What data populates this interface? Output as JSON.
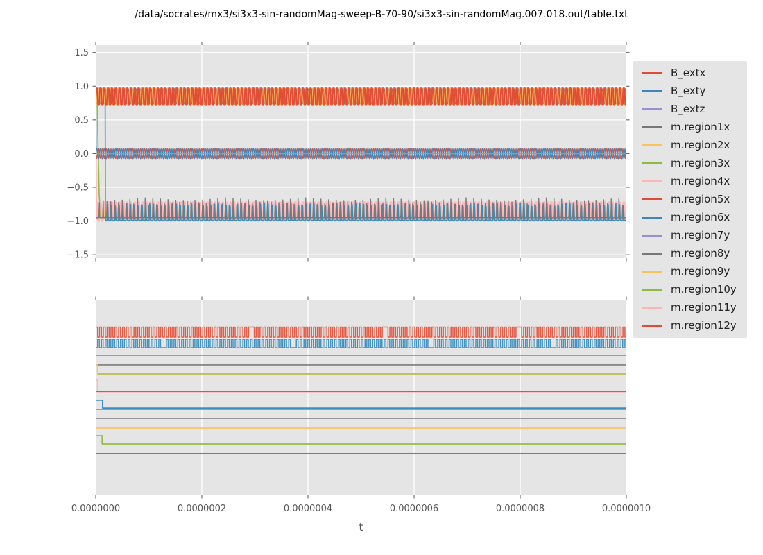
{
  "title": "/data/socrates/mx3/si3x3-sin-randomMag-sweep-B-70-90/si3x3-sin-randomMag.007.018.out/table.txt",
  "xlabel": "t",
  "palette": {
    "red": "#e24a33",
    "blue": "#348abd",
    "purple": "#988ed5",
    "gray": "#777777",
    "orange": "#fbc15e",
    "green": "#8eba42",
    "pink": "#ffb5b8",
    "plot_bg": "#e5e5e5",
    "grid": "#ffffff",
    "tick_text": "#555555",
    "title_text": "#000000"
  },
  "legend": {
    "entries": [
      {
        "label": "B_extx",
        "color": "#e24a33"
      },
      {
        "label": "B_exty",
        "color": "#348abd"
      },
      {
        "label": "B_extz",
        "color": "#988ed5"
      },
      {
        "label": "m.region1x",
        "color": "#777777"
      },
      {
        "label": "m.region2x",
        "color": "#fbc15e"
      },
      {
        "label": "m.region3x",
        "color": "#8eba42"
      },
      {
        "label": "m.region4x",
        "color": "#ffb5b8"
      },
      {
        "label": "m.region5x",
        "color": "#e24a33"
      },
      {
        "label": "m.region6x",
        "color": "#348abd"
      },
      {
        "label": "m.region7y",
        "color": "#988ed5"
      },
      {
        "label": "m.region8y",
        "color": "#777777"
      },
      {
        "label": "m.region9y",
        "color": "#fbc15e"
      },
      {
        "label": "m.region10y",
        "color": "#8eba42"
      },
      {
        "label": "m.region11y",
        "color": "#ffb5b8"
      },
      {
        "label": "m.region12y",
        "color": "#e24a33"
      }
    ]
  },
  "chart_data": [
    {
      "id": "top",
      "type": "line",
      "xlim": [
        0,
        1e-06
      ],
      "ylim": [
        -1.55,
        1.61
      ],
      "xticks": {
        "values": [
          0,
          2e-07,
          4e-07,
          6e-07,
          8e-07,
          1e-06
        ],
        "labels": [
          "0.0000000",
          "0.0000002",
          "0.0000004",
          "0.0000006",
          "0.0000008",
          "0.0000010"
        ],
        "show_labels": false
      },
      "yticks": {
        "values": [
          1.5,
          1.0,
          0.5,
          0.0,
          -0.5,
          -1.0,
          -1.5
        ],
        "labels": [
          "1.5",
          "1.0",
          "0.5",
          "0.0",
          "−0.5",
          "−1.0",
          "−1.5"
        ]
      },
      "grid": {
        "horizontal": true,
        "vertical": true
      },
      "note": "Dense periodic oscillations in three bands: ~[0.72,0.97] mostly red, ~[-0.075,0.075] around zero, ~[-1.0,-0.66] mostly pink; startup transients near t=0 where green/pink/blue traces fall from ~+0.95 to the bottom band.",
      "series": [
        {
          "name": "m.region3x",
          "color": "#8eba42",
          "lw": 1.7,
          "draw": {
            "type": "flat",
            "y": -0.93,
            "t0": 9e-09,
            "pre": [
              [
                0,
                0.95
              ],
              [
                2.5e-09,
                0.88
              ],
              [
                4.5e-09,
                0.1
              ],
              [
                6.5e-09,
                -0.6
              ],
              [
                9e-09,
                -0.93
              ]
            ]
          }
        },
        {
          "name": "m.region9y",
          "color": "#fbc15e",
          "lw": 1.6,
          "draw": {
            "type": "sine",
            "mean": -0.88,
            "amp": 0.1,
            "period": 7.2e-09,
            "phase": 1.2
          }
        },
        {
          "name": "m.region4x",
          "color": "#ffb5b8",
          "lw": 2.2,
          "draw": {
            "type": "clipsine",
            "mean": -0.86,
            "amp": 0.14,
            "clip": 2.0,
            "period": 7.2e-09,
            "phase": 0,
            "t0": 2e-09,
            "pre": [
              [
                0,
                0.1
              ],
              [
                8e-10,
                -0.4
              ],
              [
                1.6e-09,
                -0.97
              ]
            ]
          }
        },
        {
          "name": "m.region6x",
          "color": "#348abd",
          "lw": 1.6,
          "draw": {
            "type": "spikes",
            "base": -0.99,
            "tip": -0.73,
            "width": 0.3,
            "period": 7.2e-09,
            "phase": 0.35,
            "t0": 1.85e-08,
            "pre": [
              [
                0,
                0.97
              ],
              [
                1.78e-08,
                0.95
              ],
              [
                1.82e-08,
                -0.83
              ]
            ]
          }
        },
        {
          "name": "m.region8y",
          "color": "#777777",
          "lw": 1.5,
          "draw": {
            "type": "spikes",
            "base": -0.95,
            "tip": -0.655,
            "width": 0.16,
            "period": 7.2e-09,
            "phase": 0.55
          }
        },
        {
          "name": "m.region1x",
          "color": "#777777",
          "lw": 1.5,
          "draw": {
            "type": "sine",
            "mean": 0.85,
            "amp": 0.11,
            "period": 7.2e-09,
            "phase": 3.5
          }
        },
        {
          "name": "m.region2x",
          "color": "#fbc15e",
          "lw": 1.6,
          "draw": {
            "type": "sine",
            "mean": 0.85,
            "amp": 0.13,
            "period": 7.2e-09,
            "phase": 1.8
          }
        },
        {
          "name": "B_extx",
          "color": "#e24a33",
          "lw": 2.2,
          "draw": {
            "type": "clipsine",
            "mean": 0.845,
            "amp": 0.125,
            "clip": 1.6,
            "period": 7.2e-09,
            "phase": 0
          }
        },
        {
          "name": "m.region5x",
          "color": "#e24a33",
          "lw": 1.6,
          "draw": {
            "type": "sine",
            "mean": 0.0,
            "amp": 0.07,
            "period": 7.2e-09,
            "phase": 3.1
          }
        },
        {
          "name": "B_exty",
          "color": "#348abd",
          "lw": 1.6,
          "draw": {
            "type": "sine",
            "mean": 0.0,
            "amp": 0.075,
            "period": 7.2e-09,
            "phase": 0,
            "t0": 1e-09,
            "pre": [
              [
                0,
                0.93
              ],
              [
                8e-10,
                0.1
              ]
            ]
          }
        },
        {
          "name": "B_extz",
          "color": "#988ed5",
          "lw": 1.5,
          "draw": {
            "type": "flat",
            "y": 0.0
          }
        }
      ]
    },
    {
      "id": "bottom",
      "type": "line",
      "xlim": [
        0,
        1e-06
      ],
      "units": "fraction-of-plot-height-from-top (axis shown without y ticks)",
      "xticks": {
        "values": [
          0,
          2e-07,
          4e-07,
          6e-07,
          8e-07,
          1e-06
        ],
        "labels": [
          "0.0000000",
          "0.0000002",
          "0.0000004",
          "0.0000006",
          "0.0000008",
          "0.0000010"
        ],
        "show_labels": true
      },
      "yticks": {
        "values": [],
        "labels": []
      },
      "grid": {
        "horizontal": false,
        "vertical": true
      },
      "note": "Two interleaved square waves at top; below them eleven nearly-flat horizontal lines, several with a single small step-down near t=0.",
      "series": [
        {
          "name": "B_extx",
          "color": "#e24a33",
          "lw": 1.5,
          "opacity": 0.9,
          "draw": {
            "type": "square",
            "hi": 0.14,
            "lo": 0.1915,
            "duty": 0.5,
            "period": 7.2e-09,
            "phase": 0,
            "skip": [
              40,
              75,
              110
            ],
            "skip_to": "hi"
          }
        },
        {
          "name": "B_exty",
          "color": "#348abd",
          "lw": 1.5,
          "opacity": 0.9,
          "draw": {
            "type": "square",
            "hi": 0.202,
            "lo": 0.2447,
            "duty": 0.45,
            "period": 7.2e-09,
            "phase": 0.5,
            "skip": [
              18,
              52,
              88,
              120
            ],
            "skip_to": "lo"
          }
        },
        {
          "name": "B_extz",
          "color": "#988ed5",
          "lw": 1.7,
          "draw": {
            "type": "flat",
            "y": 0.284
          }
        },
        {
          "name": "m.region1x",
          "color": "#777777",
          "lw": 1.6,
          "draw": {
            "type": "flat",
            "y": 0.333
          }
        },
        {
          "name": "m.region2x",
          "color": "#fbc15e",
          "lw": 1.7,
          "draw": {
            "type": "step",
            "y0": 0.333,
            "y1": 0.3795,
            "t": 3.5e-09
          }
        },
        {
          "name": "m.region3x",
          "color": "#8eba42",
          "lw": 1.7,
          "opacity": 0.55,
          "draw": {
            "type": "flat",
            "y": 0.3795,
            "t0": 3.5e-09
          }
        },
        {
          "name": "m.region11y",
          "color": "#ffb5b8",
          "lw": 1.8,
          "draw": {
            "type": "step",
            "y0": 0.411,
            "y1": 0.471,
            "t": 3.5e-09
          }
        },
        {
          "name": "m.region5x",
          "color": "#e24a33",
          "lw": 1.7,
          "draw": {
            "type": "flat",
            "y": 0.4685
          }
        },
        {
          "name": "m.region7y",
          "color": "#988ed5",
          "lw": 1.6,
          "draw": {
            "type": "flat",
            "y": 0.561
          }
        },
        {
          "name": "m.region6x",
          "color": "#348abd",
          "lw": 1.8,
          "draw": {
            "type": "step",
            "y0": 0.514,
            "y1": 0.5535,
            "t": 1.3e-08
          }
        },
        {
          "name": "m.region8y",
          "color": "#777777",
          "lw": 1.6,
          "draw": {
            "type": "flat",
            "y": 0.606
          }
        },
        {
          "name": "m.region9y",
          "color": "#fbc15e",
          "lw": 1.7,
          "draw": {
            "type": "flat",
            "y": 0.656
          }
        },
        {
          "name": "m.region10y",
          "color": "#8eba42",
          "lw": 1.7,
          "draw": {
            "type": "step",
            "y0": 0.695,
            "y1": 0.7376,
            "t": 1.2e-08
          }
        },
        {
          "name": "m.region12y",
          "color": "#e24a33",
          "lw": 1.7,
          "draw": {
            "type": "flat",
            "y": 0.787
          }
        }
      ]
    }
  ]
}
